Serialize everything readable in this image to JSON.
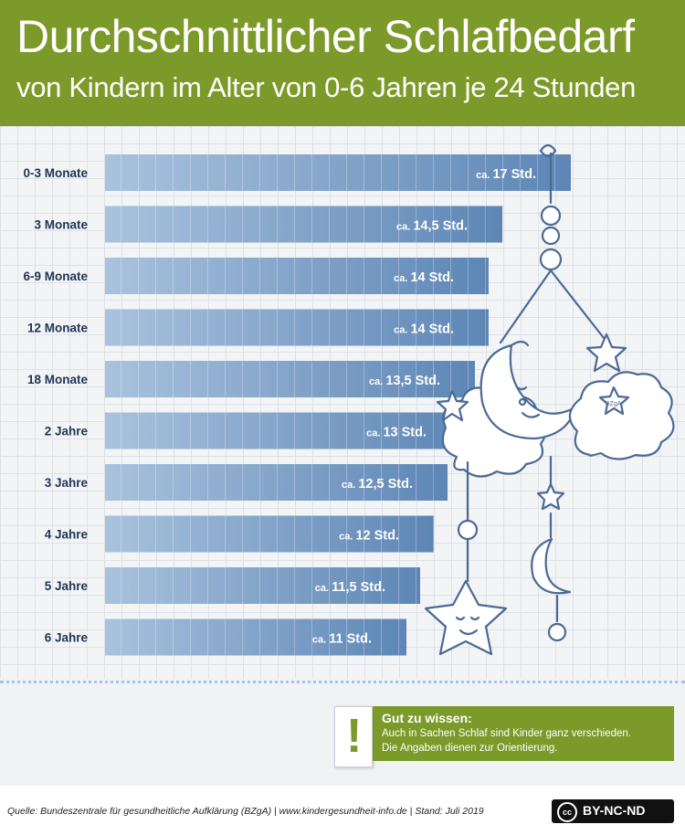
{
  "header": {
    "title": "Durchschnittlicher Schlafbedarf",
    "subtitle": "von Kindern im Alter von 0-6 Jahren je 24 Stunden"
  },
  "chart_data": {
    "type": "bar",
    "orientation": "horizontal",
    "categories": [
      "0-3 Monate",
      "3 Monate",
      "6-9 Monate",
      "12 Monate",
      "18 Monate",
      "2 Jahre",
      "3 Jahre",
      "4 Jahre",
      "5 Jahre",
      "6 Jahre"
    ],
    "values": [
      17,
      14.5,
      14,
      14,
      13.5,
      13,
      12.5,
      12,
      11.5,
      11
    ],
    "value_labels": [
      "17 Std.",
      "14,5 Std.",
      "14 Std.",
      "14 Std.",
      "13,5 Std.",
      "13 Std.",
      "12,5 Std.",
      "12 Std.",
      "11,5 Std.",
      "11 Std."
    ],
    "value_prefix": "ca.",
    "title": "",
    "xlabel": "",
    "ylabel": "",
    "xlim": [
      0,
      17
    ],
    "grid": true,
    "colors": {
      "bar_light": "#a9c2de",
      "bar_dark": "#5d86b5"
    }
  },
  "note": {
    "exclamation": "!",
    "title": "Gut zu wissen:",
    "line1": "Auch in Sachen Schlaf sind Kinder ganz verschieden.",
    "line2": "Die Angaben dienen zur Orientierung."
  },
  "footer": {
    "source": "Quelle: Bundeszentrale für gesundheitliche Aufklärung (BZgA) | www.kindergesundheit-info.de | Stand: Juli 2019",
    "license_symbol": "cc",
    "license": "BY-NC-ND"
  },
  "colors": {
    "header_green": "#7c9a2a",
    "label_navy": "#1f3555",
    "mobile_stroke": "#4a6a95"
  },
  "decoration": {
    "mobile_badge": "BZgA",
    "icons": [
      "moon-icon",
      "cloud-icon",
      "star-icon",
      "bead-icon"
    ]
  }
}
